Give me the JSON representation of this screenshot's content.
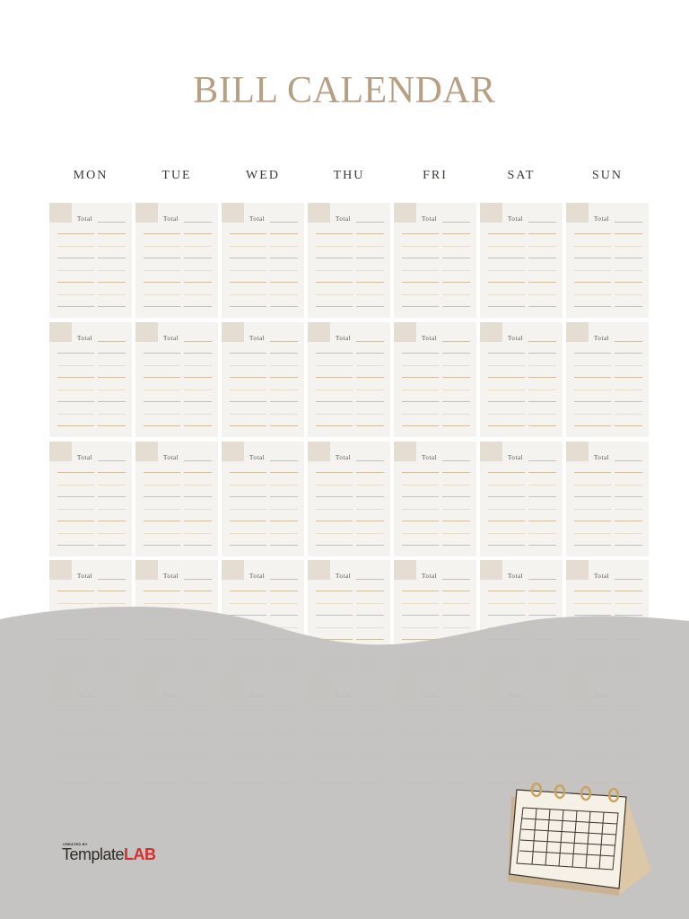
{
  "page": {
    "title": "BILL CALENDAR"
  },
  "colors": {
    "accent": "#b79f84",
    "cell_background": "#f5f3ef",
    "date_box": "#e5ddd1",
    "wave": "#c3c1bf",
    "logo_red": "#d32f2f"
  },
  "days": [
    "MON",
    "TUE",
    "WED",
    "THU",
    "FRI",
    "SAT",
    "SUN"
  ],
  "weeks": [
    {
      "cells": [
        {
          "total_label": "Total"
        },
        {
          "total_label": "Total"
        },
        {
          "total_label": "Total"
        },
        {
          "total_label": "Total"
        },
        {
          "total_label": "Total"
        },
        {
          "total_label": "Total"
        },
        {
          "total_label": "Total"
        }
      ]
    },
    {
      "cells": [
        {
          "total_label": "Total"
        },
        {
          "total_label": "Total"
        },
        {
          "total_label": "Total"
        },
        {
          "total_label": "Total"
        },
        {
          "total_label": "Total"
        },
        {
          "total_label": "Total"
        },
        {
          "total_label": "Total"
        }
      ]
    },
    {
      "cells": [
        {
          "total_label": "Total"
        },
        {
          "total_label": "Total"
        },
        {
          "total_label": "Total"
        },
        {
          "total_label": "Total"
        },
        {
          "total_label": "Total"
        },
        {
          "total_label": "Total"
        },
        {
          "total_label": "Total"
        }
      ]
    },
    {
      "cells": [
        {
          "total_label": "Total"
        },
        {
          "total_label": "Total"
        },
        {
          "total_label": "Total"
        },
        {
          "total_label": "Total"
        },
        {
          "total_label": "Total"
        },
        {
          "total_label": "Total"
        },
        {
          "total_label": "Total"
        }
      ]
    },
    {
      "cells": [
        {
          "total_label": "Total"
        },
        {
          "total_label": "Total"
        },
        {
          "total_label": "Total"
        },
        {
          "total_label": "Total"
        },
        {
          "total_label": "Total"
        },
        {
          "total_label": "Total"
        },
        {
          "total_label": "Total"
        }
      ]
    }
  ],
  "footer": {
    "created_by": "CREATED BY",
    "brand_name": "Template",
    "brand_suffix": "LAB"
  },
  "icons": {
    "decoration": "desk-calendar-icon"
  }
}
